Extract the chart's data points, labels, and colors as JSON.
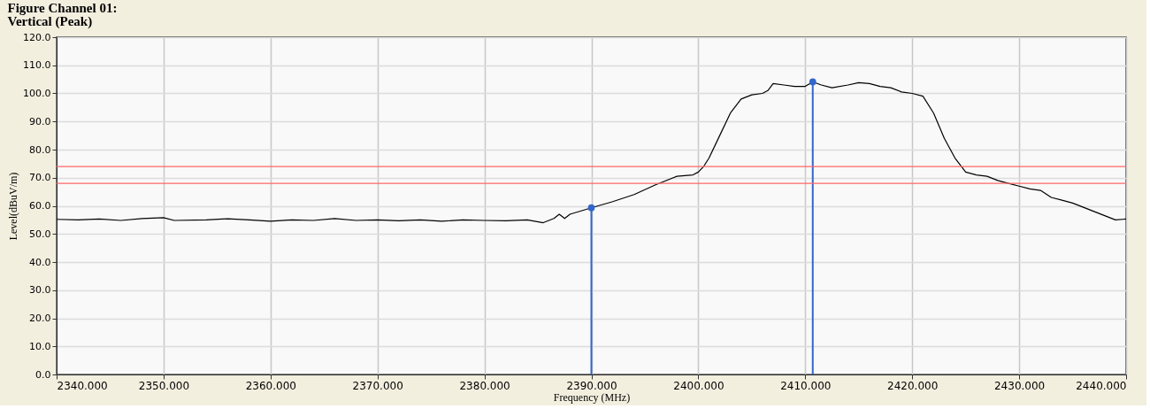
{
  "chart_data": {
    "type": "line",
    "title": "Figure Channel 01:",
    "subtitle": "Vertical (Peak)",
    "xlabel": "Frequency (MHz)",
    "ylabel": "Level(dBuV/m)",
    "xlim": [
      2340,
      2440
    ],
    "ylim": [
      0,
      120
    ],
    "xticks": [
      {
        "value": 2340,
        "label": "2340.000"
      },
      {
        "value": 2350,
        "label": "2350.000"
      },
      {
        "value": 2360,
        "label": "2360.000"
      },
      {
        "value": 2370,
        "label": "2370.000"
      },
      {
        "value": 2380,
        "label": "2380.000"
      },
      {
        "value": 2390,
        "label": "2390.000"
      },
      {
        "value": 2400,
        "label": "2400.000"
      },
      {
        "value": 2410,
        "label": "2410.000"
      },
      {
        "value": 2420,
        "label": "2420.000"
      },
      {
        "value": 2430,
        "label": "2430.000"
      },
      {
        "value": 2440,
        "label": "2440.000"
      }
    ],
    "yticks": [
      {
        "value": 0,
        "label": "0.0"
      },
      {
        "value": 10,
        "label": "10.0"
      },
      {
        "value": 20,
        "label": "20.0"
      },
      {
        "value": 30,
        "label": "30.0"
      },
      {
        "value": 40,
        "label": "40.0"
      },
      {
        "value": 50,
        "label": "50.0"
      },
      {
        "value": 60,
        "label": "60.0"
      },
      {
        "value": 70,
        "label": "70.0"
      },
      {
        "value": 80,
        "label": "80.0"
      },
      {
        "value": 90,
        "label": "90.0"
      },
      {
        "value": 100,
        "label": "100.0"
      },
      {
        "value": 110,
        "label": "110.0"
      },
      {
        "value": 120,
        "label": "120.0"
      }
    ],
    "grid": true,
    "series": [
      {
        "color": "#000000",
        "x": [
          2340,
          2342,
          2344,
          2346,
          2348,
          2350,
          2351,
          2354,
          2356,
          2358,
          2360,
          2362,
          2364,
          2366,
          2368,
          2370,
          2372,
          2374,
          2376,
          2378,
          2380,
          2382,
          2384,
          2385.5,
          2386.5,
          2387,
          2387.5,
          2388,
          2390,
          2392,
          2394,
          2396,
          2398,
          2399.5,
          2400,
          2400.5,
          2401,
          2402,
          2403,
          2404,
          2405,
          2406,
          2406.5,
          2407,
          2408,
          2409,
          2410,
          2410.7,
          2411.5,
          2412.5,
          2414,
          2415,
          2416,
          2417,
          2418,
          2419,
          2420,
          2421,
          2422,
          2423,
          2424,
          2425,
          2426,
          2427,
          2428,
          2429,
          2430,
          2431,
          2432,
          2433,
          2434,
          2435,
          2436,
          2437,
          2438,
          2439,
          2440
        ],
        "values": [
          55.2,
          55,
          55.3,
          54.8,
          55.5,
          55.8,
          54.8,
          55,
          55.4,
          55,
          54.5,
          55,
          54.8,
          55.5,
          54.8,
          55,
          54.7,
          55,
          54.5,
          55,
          54.8,
          54.7,
          55,
          54,
          55.5,
          57,
          55.5,
          57,
          59.3,
          61.5,
          64,
          67.5,
          70.5,
          71,
          72,
          74,
          77,
          85,
          93,
          98,
          99.5,
          100,
          101,
          103.5,
          103,
          102.5,
          102.5,
          104.1,
          103,
          102,
          103,
          103.8,
          103.5,
          102.5,
          102,
          100.5,
          100,
          99,
          93,
          84,
          77,
          72,
          71,
          70.5,
          69,
          68,
          67,
          66,
          65.5,
          63,
          62,
          61,
          59.5,
          58,
          56.5,
          55,
          55.3
        ]
      },
      {
        "type": "lollipop",
        "color": "#3366cc",
        "x": [
          2390,
          2410.7
        ],
        "values": [
          59.3,
          104.1
        ]
      }
    ],
    "ref_lines": [
      {
        "axis": "y",
        "value": 74,
        "color": "#ff6666"
      },
      {
        "axis": "y",
        "value": 68,
        "color": "#ff6666"
      }
    ]
  }
}
